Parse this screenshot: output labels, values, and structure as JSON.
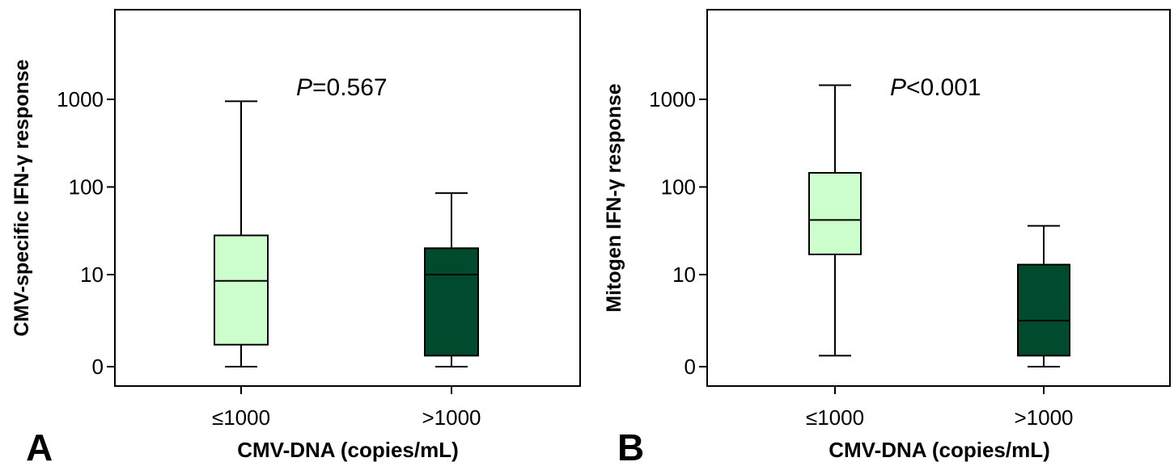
{
  "chart_data": [
    {
      "type": "box",
      "panel_label": "A",
      "ylabel": "CMV-specific IFN-γ response",
      "xlabel": "CMV-DNA (copies/mL)",
      "y_scale": "log",
      "y_ticks": [
        0,
        10,
        100,
        1000
      ],
      "annotation": {
        "italic": "P",
        "rest": "=0.567"
      },
      "categories": [
        "≤1000",
        ">1000"
      ],
      "colors": [
        "#ccffcc",
        "#004a2e"
      ],
      "boxes": [
        {
          "category": "≤1000",
          "min": 0,
          "q1": 1.6,
          "median": 8.5,
          "q3": 28,
          "max": 950
        },
        {
          "category": ">1000",
          "min": 0,
          "q1": 1.2,
          "median": 10,
          "q3": 20,
          "max": 85
        }
      ]
    },
    {
      "type": "box",
      "panel_label": "B",
      "ylabel": "Mitogen IFN-γ response",
      "xlabel": "CMV-DNA (copies/mL)",
      "y_scale": "log",
      "y_ticks": [
        0,
        10,
        100,
        1000
      ],
      "annotation": {
        "italic": "P",
        "rest": "<0.001"
      },
      "categories": [
        "≤1000",
        ">1000"
      ],
      "colors": [
        "#ccffcc",
        "#004a2e"
      ],
      "boxes": [
        {
          "category": "≤1000",
          "min": 1.2,
          "q1": 17,
          "median": 42,
          "q3": 145,
          "max": 1450
        },
        {
          "category": ">1000",
          "min": 0,
          "q1": 1.2,
          "median": 3,
          "q3": 13,
          "max": 36
        }
      ]
    }
  ]
}
